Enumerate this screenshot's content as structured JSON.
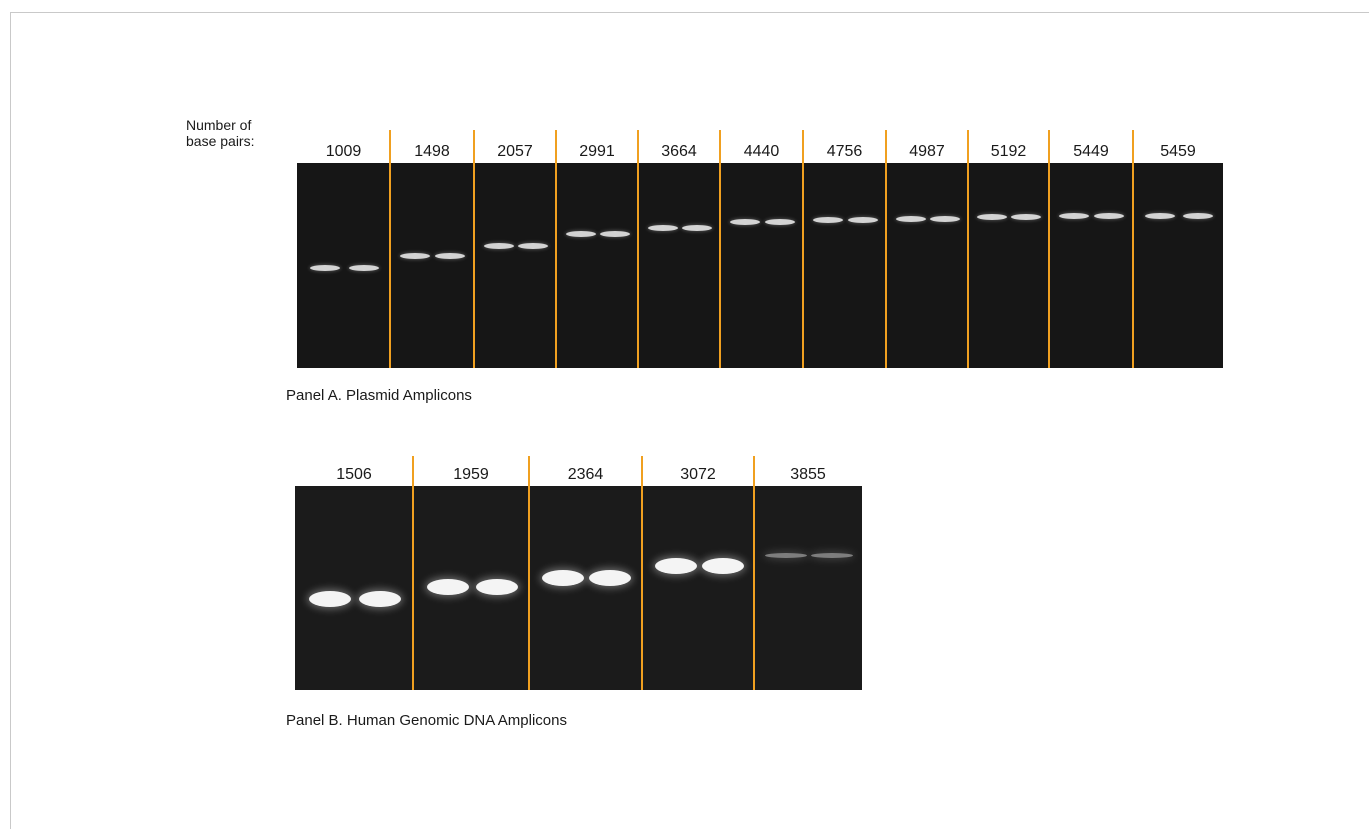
{
  "y_axis_label": [
    "Number of",
    "base pairs:"
  ],
  "panels": [
    {
      "id": "A",
      "caption": "Panel A. Plasmid Amplicons",
      "unit": "base pairs",
      "lane_groups": [
        {
          "label": "1009",
          "bp": 1009
        },
        {
          "label": "1498",
          "bp": 1498
        },
        {
          "label": "2057",
          "bp": 2057
        },
        {
          "label": "2991",
          "bp": 2991
        },
        {
          "label": "3664",
          "bp": 3664
        },
        {
          "label": "4440",
          "bp": 4440
        },
        {
          "label": "4756",
          "bp": 4756
        },
        {
          "label": "4987",
          "bp": 4987
        },
        {
          "label": "5192",
          "bp": 5192
        },
        {
          "label": "5449",
          "bp": 5449
        },
        {
          "label": "5459",
          "bp": 5459
        }
      ],
      "band_intensity": "faint",
      "lanes_per_group": 2
    },
    {
      "id": "B",
      "caption": "Panel B. Human Genomic DNA Amplicons",
      "unit": "base pairs",
      "lane_groups": [
        {
          "label": "1506",
          "bp": 1506
        },
        {
          "label": "1959",
          "bp": 1959
        },
        {
          "label": "2364",
          "bp": 2364
        },
        {
          "label": "3072",
          "bp": 3072
        },
        {
          "label": "3855",
          "bp": 3855
        }
      ],
      "band_intensity": "bright",
      "lanes_per_group": 2
    }
  ],
  "colors": {
    "gel_background": "#161616",
    "divider": "#f0a020",
    "band": "#f4f4f4"
  }
}
